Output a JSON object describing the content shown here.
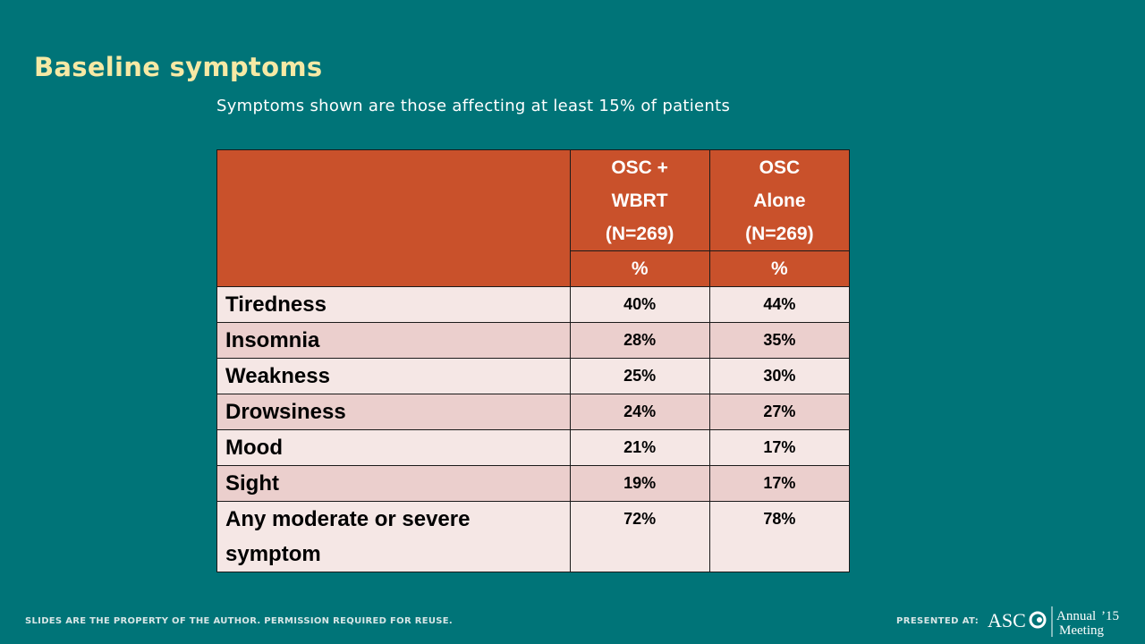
{
  "slide": {
    "title": "Baseline symptoms",
    "subtitle": "Symptoms shown are those affecting at least 15% of patients"
  },
  "table": {
    "columns": [
      "OSC + WBRT (N=269)",
      "OSC Alone (N=269)"
    ],
    "column_lines": [
      [
        "OSC +",
        "WBRT",
        "(N=269)"
      ],
      [
        "OSC",
        "Alone",
        "(N=269)"
      ]
    ],
    "units": [
      "%",
      "%"
    ],
    "rows": [
      {
        "label": "Tiredness",
        "values": [
          "40%",
          "44%"
        ]
      },
      {
        "label": "Insomnia",
        "values": [
          "28%",
          "35%"
        ]
      },
      {
        "label": "Weakness",
        "values": [
          "25%",
          "30%"
        ]
      },
      {
        "label": "Drowsiness",
        "values": [
          "24%",
          "27%"
        ]
      },
      {
        "label": "Mood",
        "values": [
          "21%",
          "17%"
        ]
      },
      {
        "label": "Sight",
        "values": [
          "19%",
          "17%"
        ]
      },
      {
        "label": "Any moderate or severe symptom",
        "label_lines": [
          "Any moderate or severe",
          "symptom"
        ],
        "values": [
          "72%",
          "78%"
        ]
      }
    ]
  },
  "footer": {
    "left_text": "SLIDES ARE THE PROPERTY OF THE AUTHOR. PERMISSION REQUIRED FOR REUSE.",
    "presented_at": "PRESENTED AT:",
    "logo_text": "ASCO Annual '15 Meeting"
  },
  "colors": {
    "background": "#007478",
    "title": "#f6e9a5",
    "header": "#c9512b",
    "row_light": "#f5e7e5",
    "row_dark": "#ebcfcd"
  }
}
